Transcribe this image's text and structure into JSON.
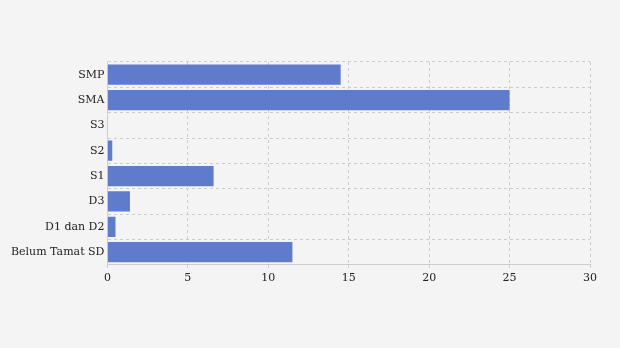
{
  "chart_data": {
    "type": "bar",
    "orientation": "horizontal",
    "categories": [
      "SMP",
      "SMA",
      "S3",
      "S2",
      "S1",
      "D3",
      "D1 dan D2",
      "Belum Tamat SD"
    ],
    "values": [
      14.5,
      25,
      0,
      0.3,
      6.6,
      1.4,
      0.5,
      11.5
    ],
    "color": "#5f7bcc",
    "xlim": [
      0,
      30
    ],
    "xticks": [
      0,
      5,
      10,
      15,
      20,
      25,
      30
    ],
    "grid": true
  }
}
